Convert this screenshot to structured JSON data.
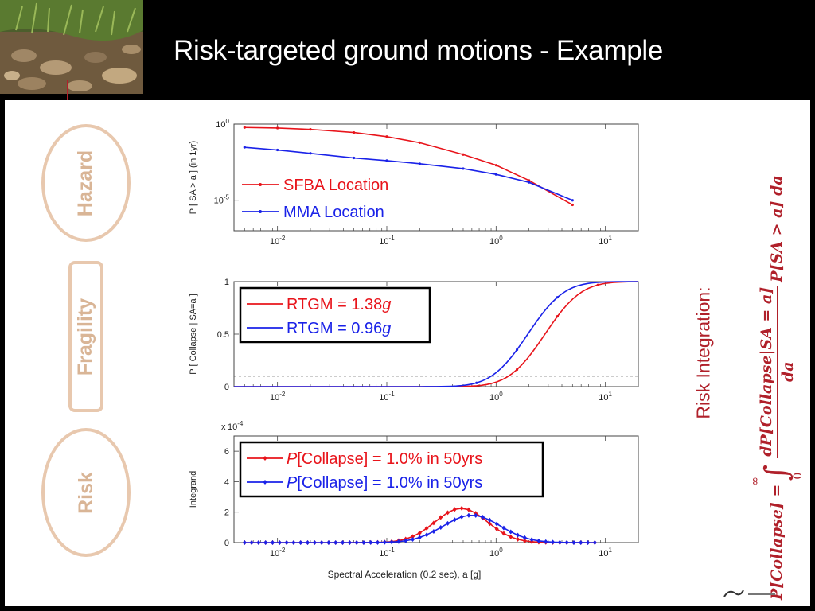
{
  "slide": {
    "title": "Risk-targeted ground motions - Example",
    "side_labels": {
      "hazard": "Hazard",
      "fragility": "Fragility",
      "risk": "Risk"
    },
    "risk_integration_label": "Risk Integration:",
    "equation": {
      "lhs": "P[Collapse] =",
      "integral_upper": "∞",
      "integral_lower": "0",
      "numerator": "dP[Collapse|SA = a]",
      "denominator": "da",
      "hazard_term": "P[SA > a] da"
    }
  },
  "colors": {
    "series_red": "#e8141b",
    "series_blue": "#1a22e8",
    "accent": "#b0202a",
    "side_label": "#d9b596"
  },
  "chart_data": [
    {
      "type": "line",
      "name": "hazard",
      "ylabel": "P [ SA > a ]   (in 1yr)",
      "xscale": "log",
      "yscale": "log",
      "xlim": [
        0.004,
        20
      ],
      "ylim": [
        1e-07,
        1
      ],
      "xticks": [
        "10-2",
        "10-1",
        "100",
        "101"
      ],
      "yticks": [
        "100",
        "10-5"
      ],
      "legend": "inside-left",
      "series": [
        {
          "name": "SFBA Location",
          "color": "#e8141b",
          "x": [
            0.005,
            0.01,
            0.02,
            0.05,
            0.1,
            0.2,
            0.5,
            1,
            2,
            5
          ],
          "y": [
            0.6,
            0.55,
            0.45,
            0.28,
            0.15,
            0.06,
            0.01,
            0.002,
            0.0002,
            5e-06
          ]
        },
        {
          "name": "MMA Location",
          "color": "#1a22e8",
          "x": [
            0.005,
            0.01,
            0.02,
            0.05,
            0.1,
            0.2,
            0.5,
            1,
            2,
            5
          ],
          "y": [
            0.03,
            0.02,
            0.012,
            0.006,
            0.004,
            0.0025,
            0.0012,
            0.0005,
            0.00015,
            1e-05
          ]
        }
      ]
    },
    {
      "type": "line",
      "name": "fragility",
      "ylabel": "P [ Collapse | SA=a ]",
      "xscale": "log",
      "xlim": [
        0.004,
        20
      ],
      "ylim": [
        0,
        1
      ],
      "xticks": [
        "10-2",
        "10-1",
        "100",
        "101"
      ],
      "yticks": [
        "0",
        "0.5",
        "1"
      ],
      "reference_line": 0.1,
      "legend": "top-left",
      "series": [
        {
          "name": "RTGM = 1.38g",
          "label_prefix": "RTGM = 1.38",
          "label_unit": "g",
          "color": "#e8141b",
          "median": 2.8,
          "beta": 0.6
        },
        {
          "name": "RTGM = 0.96g",
          "label_prefix": "RTGM = 0.96",
          "label_unit": "g",
          "color": "#1a22e8",
          "median": 1.95,
          "beta": 0.6
        }
      ]
    },
    {
      "type": "line",
      "name": "risk",
      "ylabel": "Integrand",
      "xlabel": "Spectral Acceleration (0.2 sec), a   [g]",
      "xscale": "log",
      "xlim": [
        0.004,
        20
      ],
      "ylim": [
        0,
        7
      ],
      "y_multiplier": "x 10-4",
      "xticks": [
        "10-2",
        "10-1",
        "100",
        "101"
      ],
      "yticks": [
        "0",
        "2",
        "4",
        "6"
      ],
      "legend": "top-left",
      "series": [
        {
          "name": "P[Collapse] = 1.0% in 50yrs",
          "label_italic": "P",
          "label_rest": "[Collapse] = 1.0% in 50yrs",
          "color": "#e8141b",
          "peak": 2.25,
          "peak_x": 0.48,
          "width": 0.55
        },
        {
          "name": "P[Collapse] = 1.0% in 50yrs",
          "label_italic": "P",
          "label_rest": "[Collapse] = 1.0% in 50yrs",
          "color": "#1a22e8",
          "peak": 1.8,
          "peak_x": 0.6,
          "width": 0.6
        }
      ]
    }
  ]
}
